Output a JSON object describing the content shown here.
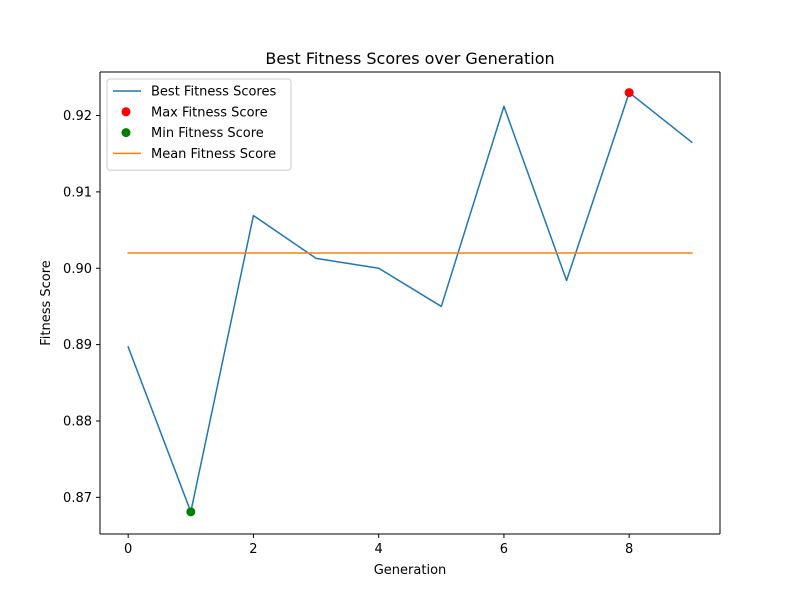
{
  "chart_data": {
    "type": "line",
    "title": "Best Fitness Scores over Generation",
    "xlabel": "Generation",
    "ylabel": "Fitness Score",
    "xlim": [
      -0.45,
      9.45
    ],
    "ylim": [
      0.8652,
      0.9257
    ],
    "x_ticks": [
      0,
      2,
      4,
      6,
      8
    ],
    "x_tick_labels": [
      "0",
      "2",
      "4",
      "6",
      "8"
    ],
    "y_ticks": [
      0.87,
      0.88,
      0.89,
      0.9,
      0.91,
      0.92
    ],
    "y_tick_labels": [
      "0.87",
      "0.88",
      "0.89",
      "0.90",
      "0.91",
      "0.92"
    ],
    "grid": false,
    "legend_position": "top-left",
    "series": [
      {
        "name": "Best Fitness Scores",
        "kind": "line",
        "color": "#1f77b4",
        "x": [
          0,
          1,
          2,
          3,
          4,
          5,
          6,
          7,
          8,
          9
        ],
        "y": [
          0.8897,
          0.8681,
          0.9069,
          0.9013,
          0.9,
          0.895,
          0.9212,
          0.8984,
          0.923,
          0.9165
        ]
      },
      {
        "name": "Max Fitness Score",
        "kind": "scatter",
        "color": "#ff0000",
        "x": [
          8
        ],
        "y": [
          0.923
        ]
      },
      {
        "name": "Min Fitness Score",
        "kind": "scatter",
        "color": "#008000",
        "x": [
          1
        ],
        "y": [
          0.8681
        ]
      },
      {
        "name": "Mean Fitness Score",
        "kind": "hline",
        "color": "#ff7f0e",
        "x": [
          0,
          9
        ],
        "y": [
          0.902,
          0.902
        ]
      }
    ]
  }
}
